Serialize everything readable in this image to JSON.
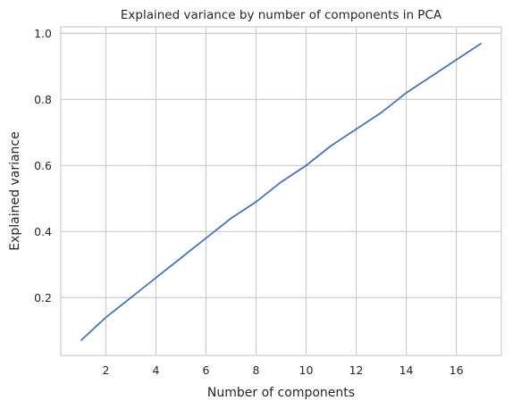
{
  "chart_data": {
    "type": "line",
    "title": "Explained variance by number of components in PCA",
    "xlabel": "Number of components",
    "ylabel": "Explained variance",
    "xlim": [
      0.2,
      17.8
    ],
    "ylim": [
      0.025,
      1.02
    ],
    "xticks": [
      2,
      4,
      6,
      8,
      10,
      12,
      14,
      16
    ],
    "yticks": [
      0.2,
      0.4,
      0.6,
      0.8,
      1.0
    ],
    "ytick_labels": [
      "0.2",
      "0.4",
      "0.6",
      "0.8",
      "1.0"
    ],
    "grid": true,
    "series": [
      {
        "color": "#4c72b0",
        "x": [
          1,
          2,
          3,
          4,
          5,
          6,
          7,
          8,
          9,
          10,
          11,
          12,
          13,
          14,
          15,
          16,
          17
        ],
        "y": [
          0.07,
          0.14,
          0.2,
          0.26,
          0.32,
          0.38,
          0.44,
          0.49,
          0.55,
          0.6,
          0.66,
          0.71,
          0.76,
          0.82,
          0.87,
          0.92,
          0.97
        ]
      }
    ]
  }
}
